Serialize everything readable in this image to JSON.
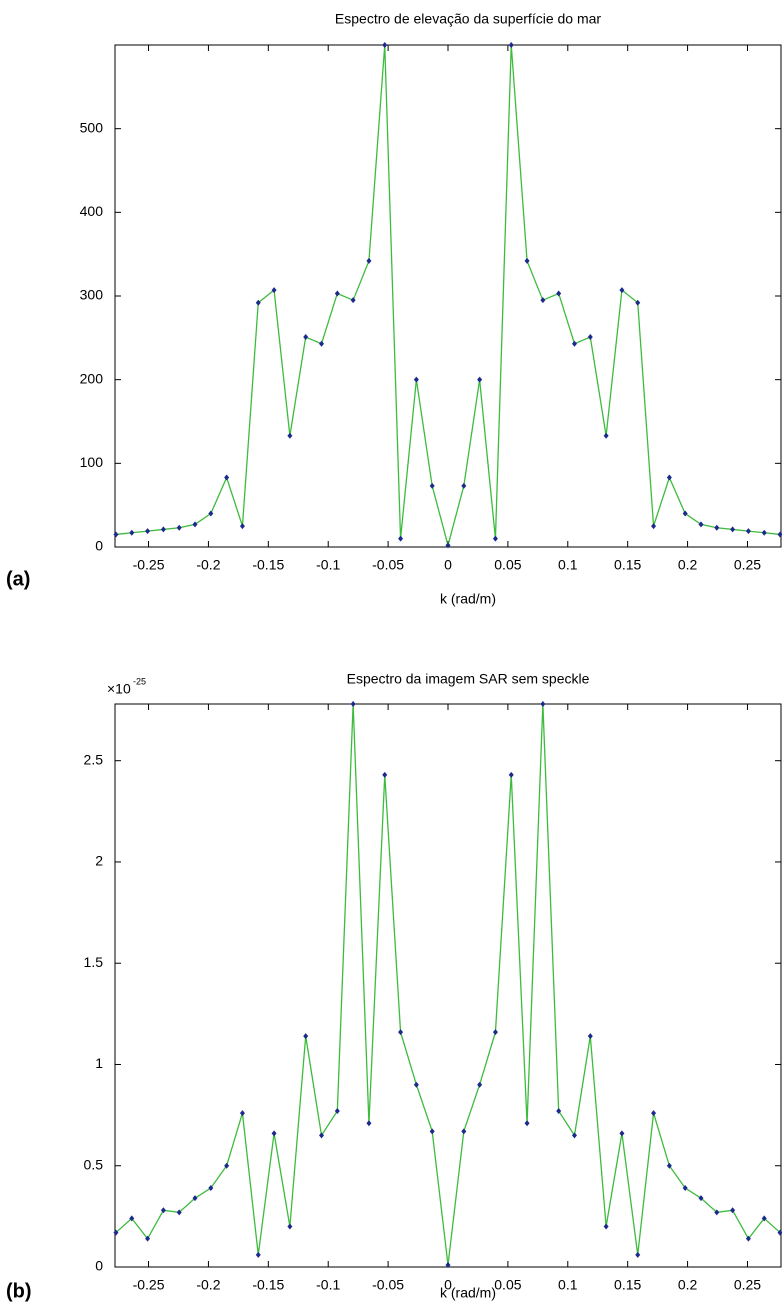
{
  "chart_data": [
    {
      "type": "line",
      "title": "Espectro de elevação da superfície do mar",
      "x_label": "k (rad/m)",
      "panel_label": "(a)",
      "x": [
        -0.2772,
        -0.264,
        -0.2508,
        -0.2376,
        -0.2244,
        -0.2112,
        -0.198,
        -0.1848,
        -0.1716,
        -0.1584,
        -0.1452,
        -0.132,
        -0.1188,
        -0.1056,
        -0.0924,
        -0.0792,
        -0.066,
        -0.0528,
        -0.0396,
        -0.0264,
        -0.0132,
        0,
        0.0132,
        0.0264,
        0.0396,
        0.0528,
        0.066,
        0.0792,
        0.0924,
        0.1056,
        0.1188,
        0.132,
        0.1452,
        0.1584,
        0.1716,
        0.1848,
        0.198,
        0.2112,
        0.2244,
        0.2376,
        0.2508,
        0.264,
        0.2772
      ],
      "series": [
        {
          "color": "#3dbb3d",
          "marker_color": "#1c2a8c",
          "values": [
            15,
            17,
            19,
            21,
            23,
            27,
            40,
            83,
            25,
            292,
            307,
            133,
            251,
            243,
            303,
            295,
            342,
            600,
            10,
            200,
            73,
            2,
            73,
            200,
            10,
            600,
            342,
            295,
            303,
            243,
            251,
            133,
            307,
            292,
            25,
            83,
            40,
            27,
            23,
            21,
            19,
            17,
            15
          ]
        }
      ],
      "xlim": [
        -0.278,
        0.278
      ],
      "xticks": [
        -0.25,
        -0.2,
        -0.15,
        -0.1,
        -0.05,
        0,
        0.05,
        0.1,
        0.15,
        0.2,
        0.25
      ],
      "ylim": [
        0,
        600
      ],
      "yticks": [
        0,
        100,
        200,
        300,
        400,
        500
      ]
    },
    {
      "type": "line",
      "title": "Espectro da imagem SAR sem speckle",
      "x_label": "k (rad/m)",
      "panel_label": "(b)",
      "y_multiplier": "×10",
      "y_exponent": "-25",
      "x": [
        -0.2772,
        -0.264,
        -0.2508,
        -0.2376,
        -0.2244,
        -0.2112,
        -0.198,
        -0.1848,
        -0.1716,
        -0.1584,
        -0.1452,
        -0.132,
        -0.1188,
        -0.1056,
        -0.0924,
        -0.0792,
        -0.066,
        -0.0528,
        -0.0396,
        -0.0264,
        -0.0132,
        0,
        0.0132,
        0.0264,
        0.0396,
        0.0528,
        0.066,
        0.0792,
        0.0924,
        0.1056,
        0.1188,
        0.132,
        0.1452,
        0.1584,
        0.1716,
        0.1848,
        0.198,
        0.2112,
        0.2244,
        0.2376,
        0.2508,
        0.264,
        0.2772
      ],
      "series": [
        {
          "color": "#3dbb3d",
          "marker_color": "#1c2a8c",
          "values": [
            0.17,
            0.24,
            0.14,
            0.28,
            0.27,
            0.34,
            0.39,
            0.5,
            0.76,
            0.06,
            0.66,
            0.2,
            1.14,
            0.65,
            0.77,
            2.78,
            0.71,
            2.43,
            1.16,
            0.9,
            0.67,
            0.01,
            0.67,
            0.9,
            1.16,
            2.43,
            0.71,
            2.78,
            0.77,
            0.65,
            1.14,
            0.2,
            0.66,
            0.06,
            0.76,
            0.5,
            0.39,
            0.34,
            0.27,
            0.28,
            0.14,
            0.24,
            0.17
          ]
        }
      ],
      "xlim": [
        -0.278,
        0.278
      ],
      "xticks": [
        -0.25,
        -0.2,
        -0.15,
        -0.1,
        -0.05,
        0,
        0.05,
        0.1,
        0.15,
        0.2,
        0.25
      ],
      "ylim": [
        0,
        2.78
      ],
      "yticks": [
        0,
        0.5,
        1,
        1.5,
        2,
        2.5
      ]
    }
  ]
}
